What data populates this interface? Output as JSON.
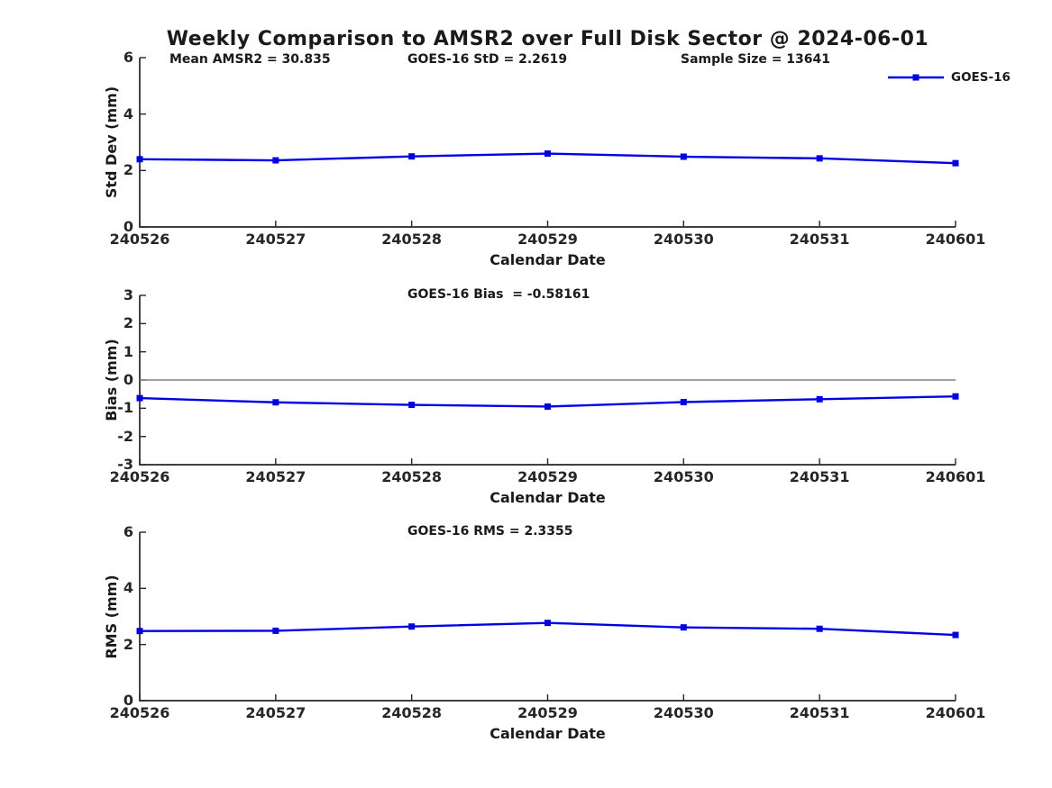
{
  "title": "Weekly Comparison to AMSR2 over Full Disk Sector @ 2024-06-01",
  "legend": {
    "label": "GOES-16"
  },
  "colors": {
    "series_line": "#0000e6",
    "zero_line": "#808080",
    "axis": "#262626",
    "text": "#1a1a1a"
  },
  "chart_data": [
    {
      "type": "line",
      "name": "std-dev",
      "title": "",
      "xlabel": "Calendar Date",
      "ylabel": "Std Dev (mm)",
      "ylim": [
        0,
        6
      ],
      "yticks": [
        0,
        2,
        4,
        6
      ],
      "categories": [
        "240526",
        "240527",
        "240528",
        "240529",
        "240530",
        "240531",
        "240601"
      ],
      "series": [
        {
          "name": "GOES-16",
          "values": [
            2.4,
            2.36,
            2.5,
            2.6,
            2.49,
            2.43,
            2.26
          ]
        }
      ],
      "annotations": [
        "Mean AMSR2 = 30.835",
        "GOES-16 StD = 2.2619",
        "Sample Size = 13641"
      ],
      "legend_entries": [
        "GOES-16"
      ],
      "legend_position": "top-right-outside",
      "zero_line": false,
      "grid": false
    },
    {
      "type": "line",
      "name": "bias",
      "title": "",
      "xlabel": "Calendar Date",
      "ylabel": "Bias (mm)",
      "ylim": [
        -3,
        3
      ],
      "yticks": [
        -3,
        -2,
        -1,
        0,
        1,
        2,
        3
      ],
      "categories": [
        "240526",
        "240527",
        "240528",
        "240529",
        "240530",
        "240531",
        "240601"
      ],
      "series": [
        {
          "name": "GOES-16",
          "values": [
            -0.64,
            -0.79,
            -0.88,
            -0.94,
            -0.78,
            -0.68,
            -0.58
          ]
        }
      ],
      "annotations": [
        "GOES-16 Bias  = -0.58161"
      ],
      "zero_line": true,
      "grid": false
    },
    {
      "type": "line",
      "name": "rms",
      "title": "",
      "xlabel": "Calendar Date",
      "ylabel": "RMS (mm)",
      "ylim": [
        0,
        6
      ],
      "yticks": [
        0,
        2,
        4,
        6
      ],
      "categories": [
        "240526",
        "240527",
        "240528",
        "240529",
        "240530",
        "240531",
        "240601"
      ],
      "series": [
        {
          "name": "GOES-16",
          "values": [
            2.48,
            2.49,
            2.64,
            2.77,
            2.61,
            2.56,
            2.34
          ]
        }
      ],
      "annotations": [
        "GOES-16 RMS = 2.3355"
      ],
      "zero_line": false,
      "grid": false
    }
  ]
}
